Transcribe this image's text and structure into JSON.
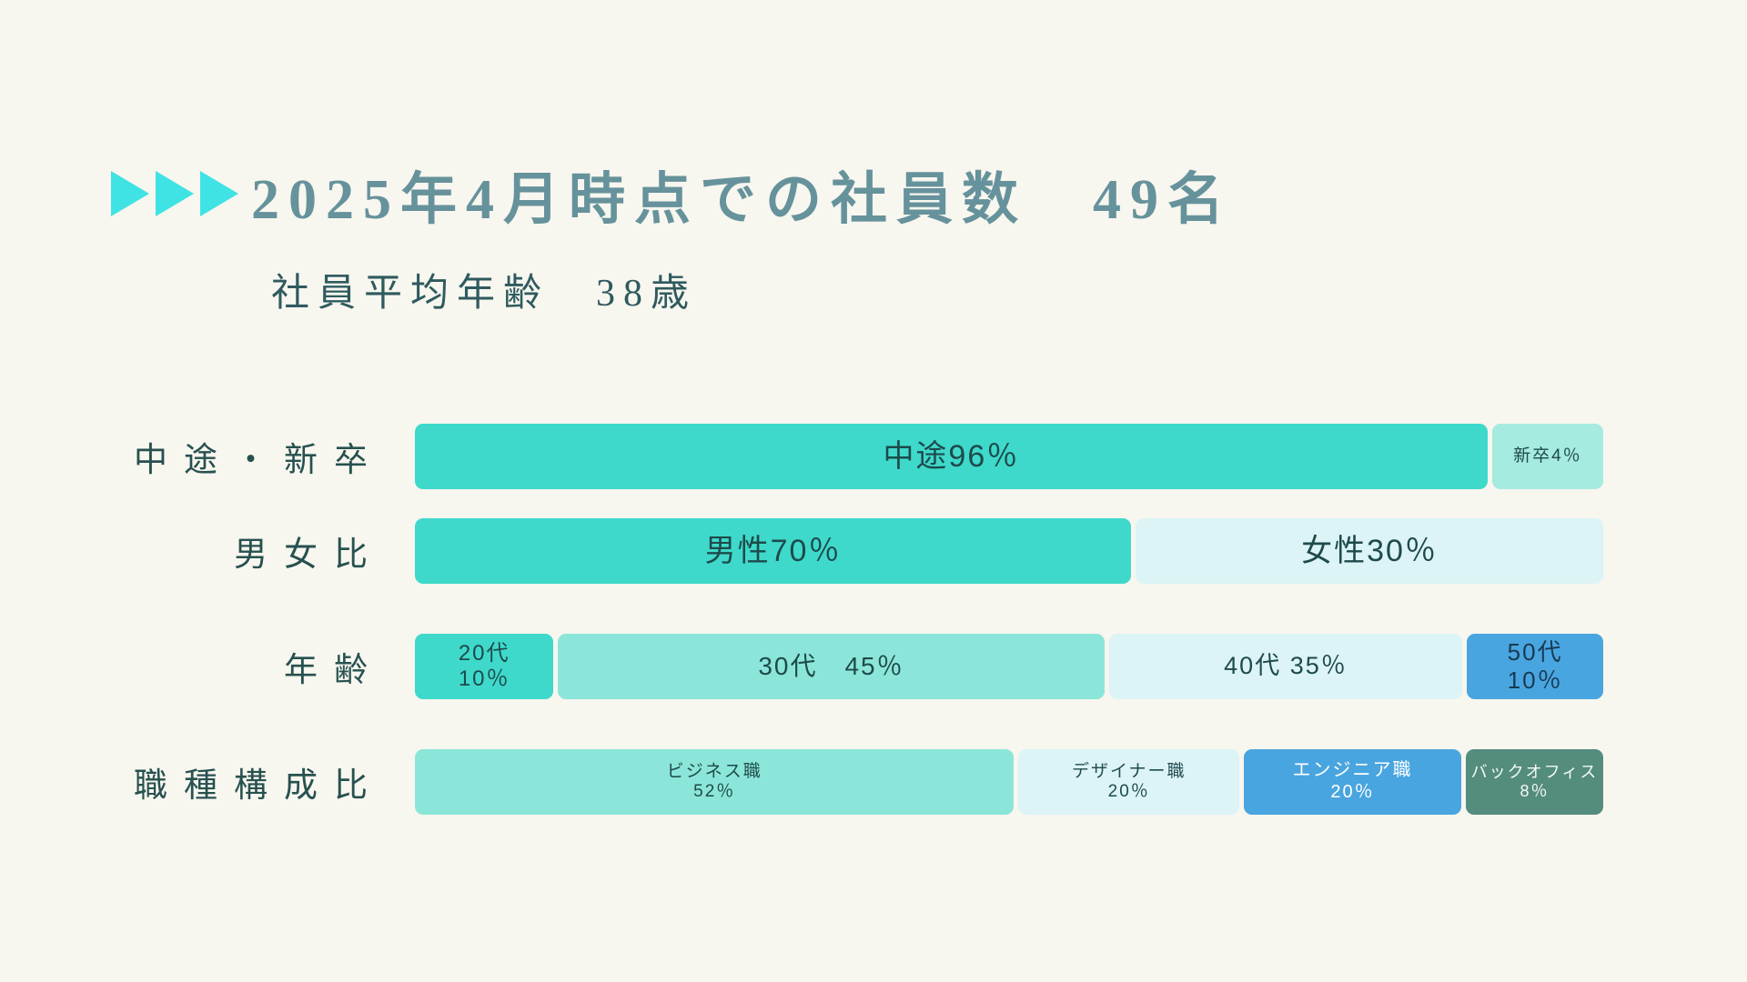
{
  "page": {
    "background_color": "#f7f6ef"
  },
  "header": {
    "arrow_icon": "play-triangle-icon",
    "arrow_count": 3,
    "arrow_color": "#3fe3e4",
    "title": "2025年4月時点での社員数　49名",
    "subtitle": "社員平均年齢　38歳"
  },
  "chart_data": {
    "type": "bar",
    "orientation": "horizontal-stacked",
    "title": "2025年4月時点での社員数　49名",
    "subtitle": "社員平均年齢　38歳",
    "total_employees": 49,
    "average_age": 38,
    "as_of": "2025年4月",
    "unit": "%",
    "legend": "labels drawn inside segments",
    "rows": [
      {
        "id": "career-type",
        "label": "中途・新卒",
        "segments": [
          {
            "id": "mid-career",
            "text": "中途96％",
            "value": 96,
            "width_pct": 90.6,
            "color": "#3ed9ca",
            "text_color": "#1e4a4c",
            "font_px": 34
          },
          {
            "id": "new-grad",
            "text": "新卒4％",
            "value": 4,
            "width_pct": 9.4,
            "color": "#a6ebe0",
            "text_color": "#1e4a4c",
            "font_px": 19
          }
        ]
      },
      {
        "id": "gender-ratio",
        "label": "男女比",
        "segments": [
          {
            "id": "male",
            "text": "男性70％",
            "value": 70,
            "width_pct": 60.5,
            "color": "#3ed9ca",
            "text_color": "#1e4a4c",
            "font_px": 34
          },
          {
            "id": "female",
            "text": "女性30％",
            "value": 30,
            "width_pct": 39.5,
            "color": "#dcf4f6",
            "text_color": "#1e4a4c",
            "font_px": 34
          }
        ]
      },
      {
        "id": "age-group",
        "label": "年齢",
        "segments": [
          {
            "id": "20s",
            "text": "20代\n10％",
            "value": 10,
            "width_pct": 11.8,
            "color": "#3ed9ca",
            "text_color": "#1e4a4c",
            "font_px": 24
          },
          {
            "id": "30s",
            "text": "30代　45％",
            "value": 45,
            "width_pct": 46.5,
            "color": "#8be6d9",
            "text_color": "#1e4a4c",
            "font_px": 28
          },
          {
            "id": "40s",
            "text": "40代 35％",
            "value": 35,
            "width_pct": 30.1,
            "color": "#dcf4f6",
            "text_color": "#1e4a4c",
            "font_px": 27
          },
          {
            "id": "50s",
            "text": "50代\n10％",
            "value": 10,
            "width_pct": 11.6,
            "color": "#49a5df",
            "text_color": "#173a54",
            "font_px": 26
          }
        ]
      },
      {
        "id": "job-composition",
        "label": "職種構成比",
        "segments": [
          {
            "id": "business",
            "text": "ビジネス職\n52％",
            "value": 52,
            "width_pct": 51.0,
            "color": "#8be6d9",
            "text_color": "#1e4a4c",
            "font_px": 19
          },
          {
            "id": "designer",
            "text": "デザイナー職\n20％",
            "value": 20,
            "width_pct": 18.8,
            "color": "#dcf4f6",
            "text_color": "#1e4a4c",
            "font_px": 19
          },
          {
            "id": "engineer",
            "text": "エンジニア職\n20％",
            "value": 20,
            "width_pct": 18.5,
            "color": "#49a5df",
            "text_color": "#ffffff",
            "font_px": 20
          },
          {
            "id": "back-office",
            "text": "バックオフィス\n8％",
            "value": 8,
            "width_pct": 11.7,
            "color": "#548c7d",
            "text_color": "#f2faf7",
            "font_px": 18
          }
        ]
      }
    ]
  }
}
